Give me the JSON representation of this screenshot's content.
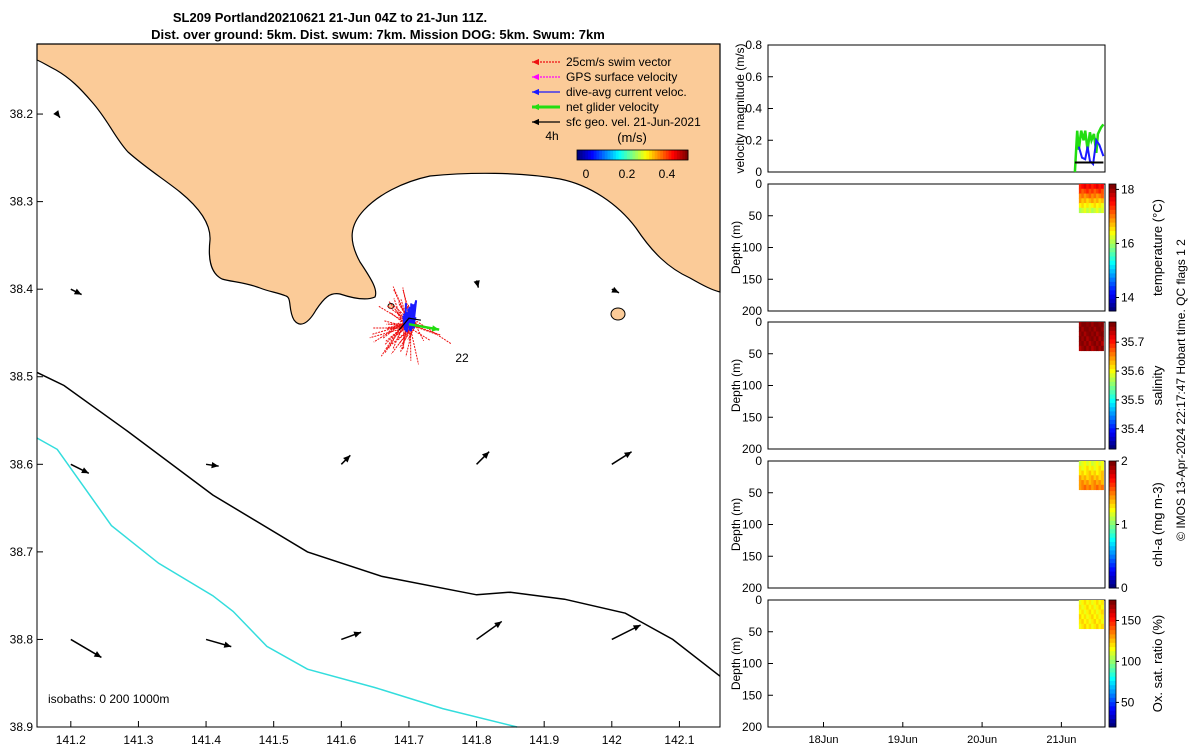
{
  "title_lines": [
    "SL209 Portland20210621 21-Jun 04Z to 21-Jun 11Z.",
    "Dist. over ground: 5km. Dist. swum: 7km. Mission DOG: 5km. Swum: 7km"
  ],
  "colors": {
    "land": "#fbcb98",
    "swim": "#ee1111",
    "gps": "#ff00ff",
    "dive": "#1a1aff",
    "net": "#22dd11",
    "geo": "#000000",
    "iso200": "#000000",
    "iso1000": "#33dddd"
  },
  "chart_data": [
    {
      "type": "map",
      "x_ticks": [
        "141.2",
        "141.3",
        "141.4",
        "141.5",
        "141.6",
        "141.7",
        "141.8",
        "141.9",
        "142",
        "142.1"
      ],
      "y_ticks": [
        "38.2",
        "38.3",
        "38.4",
        "38.5",
        "38.6",
        "38.7",
        "38.8",
        "38.9"
      ],
      "xlim": [
        141.15,
        142.16
      ],
      "ylim": [
        38.9,
        38.12
      ],
      "legend": [
        {
          "label": "25cm/s swim vector",
          "color": "#ee1111",
          "style": "dashed"
        },
        {
          "label": "GPS surface velocity",
          "color": "#ff00ff",
          "style": "dashed"
        },
        {
          "label": "dive-avg current veloc.",
          "color": "#1a1aff",
          "style": "solid"
        },
        {
          "label": "net glider velocity",
          "color": "#22dd11",
          "style": "solid"
        },
        {
          "label": "sfc geo. vel. 21-Jun-2021",
          "color": "#000000",
          "style": "solid"
        }
      ],
      "legend_placement": "top-right",
      "time_label": "4h",
      "track_label": "22",
      "colorbar": {
        "title": "(m/s)",
        "ticks": [
          "0",
          "0.2",
          "0.4"
        ],
        "range": [
          0,
          0.5
        ]
      },
      "isobath_note": "isobaths: 0   200  1000m",
      "isobath_200": [
        [
          141.15,
          38.495
        ],
        [
          141.19,
          38.51
        ],
        [
          141.28,
          38.56
        ],
        [
          141.41,
          38.635
        ],
        [
          141.55,
          38.7
        ],
        [
          141.66,
          38.728
        ],
        [
          141.8,
          38.749
        ],
        [
          141.85,
          38.746
        ],
        [
          141.93,
          38.754
        ],
        [
          142.02,
          38.77
        ],
        [
          142.09,
          38.8
        ],
        [
          142.16,
          38.842
        ]
      ],
      "isobath_1000": [
        [
          141.15,
          38.57
        ],
        [
          141.18,
          38.583
        ],
        [
          141.26,
          38.67
        ],
        [
          141.33,
          38.713
        ],
        [
          141.41,
          38.75
        ],
        [
          141.44,
          38.768
        ],
        [
          141.49,
          38.808
        ],
        [
          141.55,
          38.834
        ],
        [
          141.65,
          38.855
        ],
        [
          141.75,
          38.879
        ],
        [
          141.86,
          38.9
        ]
      ],
      "sfc_arrows": [
        {
          "lon": 141.18,
          "lat": 38.2,
          "u": 0.03,
          "v": -0.04
        },
        {
          "lon": 141.2,
          "lat": 38.4,
          "u": 0.12,
          "v": -0.06
        },
        {
          "lon": 141.2,
          "lat": 38.6,
          "u": 0.2,
          "v": -0.1
        },
        {
          "lon": 141.4,
          "lat": 38.6,
          "u": 0.14,
          "v": -0.02
        },
        {
          "lon": 141.6,
          "lat": 38.6,
          "u": 0.1,
          "v": 0.1
        },
        {
          "lon": 141.8,
          "lat": 38.6,
          "u": 0.14,
          "v": 0.14
        },
        {
          "lon": 142,
          "lat": 38.6,
          "u": 0.22,
          "v": 0.14
        },
        {
          "lon": 141.2,
          "lat": 38.8,
          "u": 0.34,
          "v": -0.2
        },
        {
          "lon": 141.4,
          "lat": 38.8,
          "u": 0.28,
          "v": -0.08
        },
        {
          "lon": 141.6,
          "lat": 38.8,
          "u": 0.22,
          "v": 0.08
        },
        {
          "lon": 141.8,
          "lat": 38.8,
          "u": 0.28,
          "v": 0.2
        },
        {
          "lon": 142,
          "lat": 38.8,
          "u": 0.32,
          "v": 0.16
        },
        {
          "lon": 141.8,
          "lat": 38.39,
          "u": 0.02,
          "v": -0.08
        },
        {
          "lon": 142,
          "lat": 38.4,
          "u": 0.08,
          "v": -0.04
        }
      ],
      "glider_position": {
        "lon": 141.7,
        "lat": 38.44
      },
      "dive_avg_current": {
        "u": 0.05,
        "v": 0.22
      },
      "net_glider_velocity": {
        "u": 0.28,
        "v": -0.05
      }
    },
    {
      "type": "line",
      "ylabel": "velocity magnitude (m/s)",
      "ylim": [
        0,
        0.8
      ],
      "yticks": [
        "0",
        "0.2",
        "0.4",
        "0.6",
        "0.8"
      ],
      "x_range_days": [
        17.3,
        21.55
      ],
      "series": [
        {
          "name": "net glider velocity",
          "color": "#22dd11",
          "x": [
            21.17,
            21.2,
            21.22,
            21.25,
            21.28,
            21.3,
            21.33,
            21.36,
            21.38,
            21.41,
            21.44,
            21.46,
            21.5,
            21.53
          ],
          "y": [
            0,
            0.26,
            0.14,
            0.26,
            0.2,
            0.26,
            0.14,
            0.25,
            0.2,
            0.24,
            0.12,
            0.24,
            0.28,
            0.3
          ]
        },
        {
          "name": "dive-avg current veloc.",
          "color": "#1a1aff",
          "x": [
            21.22,
            21.26,
            21.3,
            21.33,
            21.36,
            21.4,
            21.44,
            21.48,
            21.53
          ],
          "y": [
            0.16,
            0.09,
            0.08,
            0.16,
            0.07,
            0.05,
            0.2,
            0.17,
            0.1
          ]
        },
        {
          "name": "sfc geo. vel. 21-Jun-2021",
          "color": "#000000",
          "x": [
            21.17,
            21.53
          ],
          "y": [
            0.06,
            0.06
          ]
        }
      ]
    },
    {
      "type": "heatmap",
      "ylabel": "Depth (m)",
      "ylim": [
        200,
        0
      ],
      "yticks": [
        "0",
        "50",
        "100",
        "150",
        "200"
      ],
      "cbar_label": "temperature (°C)",
      "cbar_ticks": [
        "14",
        "16",
        "18"
      ],
      "cbar_range": [
        13.5,
        18.2
      ],
      "data_x": [
        21.17,
        21.53
      ],
      "data_depth": [
        0,
        45
      ],
      "values_surface": 17.6,
      "values_bottom": 16.2
    },
    {
      "type": "heatmap",
      "ylabel": "Depth (m)",
      "ylim": [
        200,
        0
      ],
      "yticks": [
        "0",
        "50",
        "100",
        "150",
        "200"
      ],
      "cbar_label": "salinity",
      "cbar_ticks": [
        "35.4",
        "35.5",
        "35.6",
        "35.7"
      ],
      "cbar_range": [
        35.33,
        35.77
      ],
      "data_x": [
        21.17,
        21.53
      ],
      "data_depth": [
        0,
        45
      ],
      "values_surface": 35.77,
      "values_bottom": 35.76
    },
    {
      "type": "heatmap",
      "ylabel": "Depth (m)",
      "ylim": [
        200,
        0
      ],
      "yticks": [
        "0",
        "50",
        "100",
        "150",
        "200"
      ],
      "cbar_label": "chl-a (mg m-3)",
      "cbar_ticks": [
        "0",
        "1",
        "2"
      ],
      "cbar_range": [
        0,
        2
      ],
      "data_x": [
        21.17,
        21.53
      ],
      "data_depth": [
        0,
        45
      ],
      "values_surface": 1.2,
      "values_bottom": 1.5
    },
    {
      "type": "heatmap",
      "ylabel": "Depth (m)",
      "ylim": [
        200,
        0
      ],
      "yticks": [
        "0",
        "50",
        "100",
        "150",
        "200"
      ],
      "cbar_label": "Ox. sat. ratio (%)",
      "cbar_ticks": [
        "50",
        "100",
        "150"
      ],
      "cbar_range": [
        20,
        175
      ],
      "data_x": [
        21.17,
        21.53
      ],
      "data_depth": [
        0,
        45
      ],
      "values_surface": 118,
      "values_bottom": 120,
      "xticks": [
        "18Jun",
        "19Jun",
        "20Jun",
        "21Jun"
      ],
      "xtick_days": [
        18,
        19,
        20,
        21
      ]
    }
  ],
  "credit": "© IMOS 13-Apr-2024 22:17:47 Hobart time. QC flags 1  2"
}
